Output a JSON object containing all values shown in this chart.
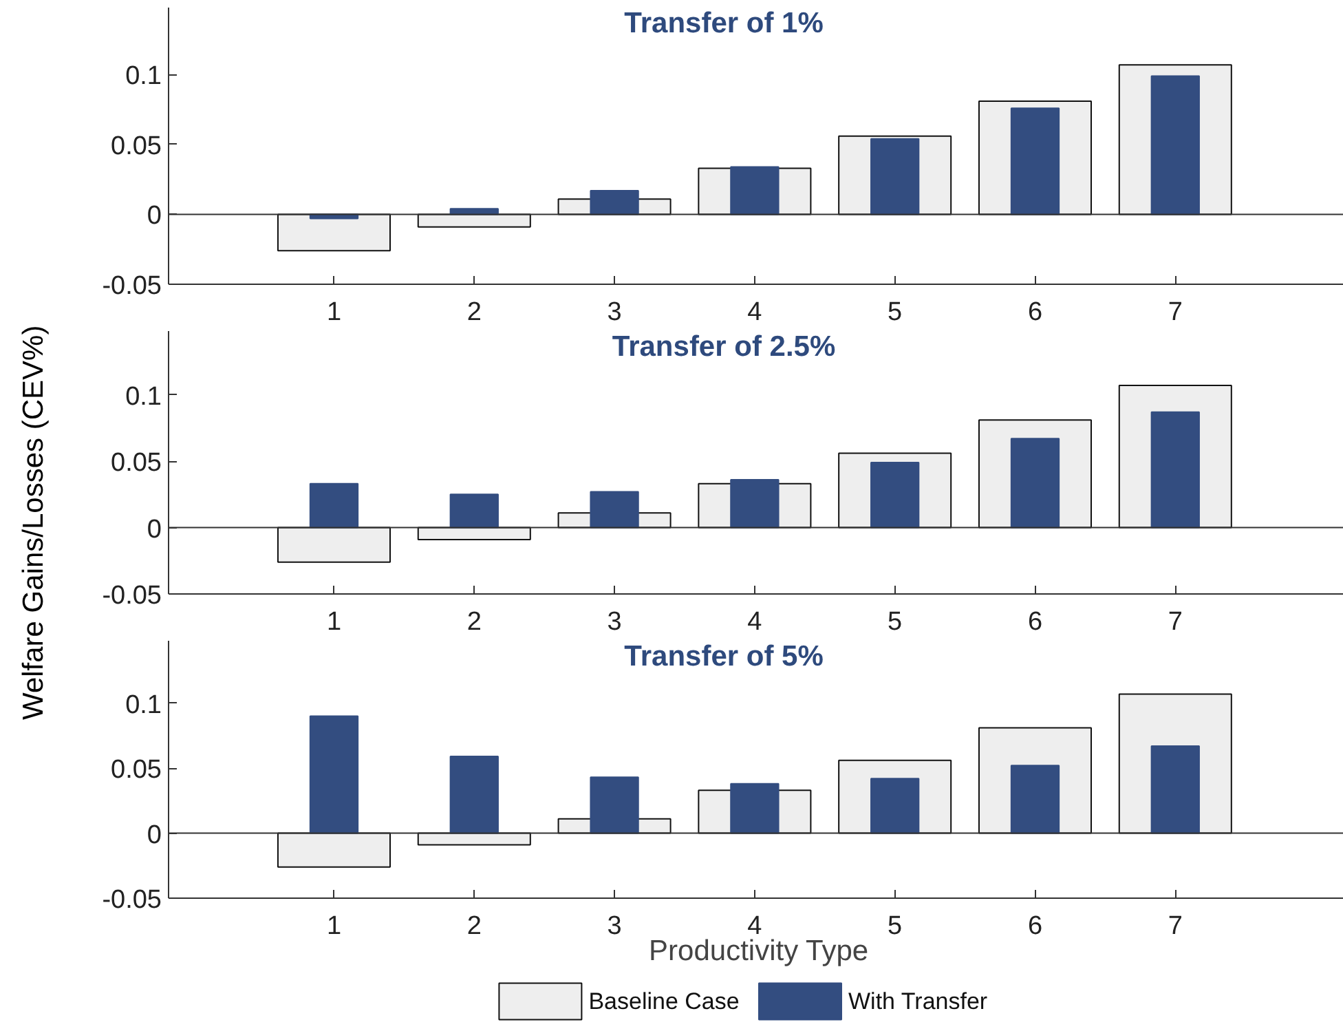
{
  "chart_data": [
    {
      "type": "bar",
      "title": "Transfer of 1%",
      "ref_lines": [
        {
          "axis": "y",
          "value": 0,
          "color": "#333333"
        }
      ],
      "x": [
        1,
        2,
        3,
        4,
        5,
        6,
        7
      ],
      "xlim": [
        -0.18,
        8.24
      ],
      "xticks": [
        1,
        2,
        3,
        4,
        5,
        6,
        7
      ],
      "ylim": [
        -0.05,
        0.148
      ],
      "yticks": [
        -0.05,
        0,
        0.05,
        0.1
      ],
      "grid": false,
      "legend": false,
      "series": [
        {
          "color": "#eeeeee",
          "values": [
            -0.026,
            -0.009,
            0.011,
            0.033,
            0.056,
            0.081,
            0.107
          ]
        },
        {
          "color": "#334d80",
          "values": [
            -0.003,
            0.004,
            0.017,
            0.034,
            0.054,
            0.076,
            0.099
          ]
        }
      ]
    },
    {
      "type": "bar",
      "title": "Transfer of 2.5%",
      "ref_lines": [
        {
          "axis": "y",
          "value": 0,
          "color": "#333333"
        }
      ],
      "ylabel": "Welfare Gains/Losses (CEV%)",
      "x": [
        1,
        2,
        3,
        4,
        5,
        6,
        7
      ],
      "xlim": [
        -0.18,
        8.24
      ],
      "xticks": [
        1,
        2,
        3,
        4,
        5,
        6,
        7
      ],
      "ylim": [
        -0.05,
        0.148
      ],
      "yticks": [
        -0.05,
        0,
        0.05,
        0.1
      ],
      "grid": false,
      "legend": false,
      "series": [
        {
          "color": "#eeeeee",
          "values": [
            -0.026,
            -0.009,
            0.011,
            0.033,
            0.056,
            0.081,
            0.107
          ]
        },
        {
          "color": "#334d80",
          "values": [
            0.033,
            0.025,
            0.027,
            0.036,
            0.049,
            0.067,
            0.087
          ]
        }
      ]
    },
    {
      "type": "bar",
      "title": "Transfer of 5%",
      "ref_lines": [
        {
          "axis": "y",
          "value": 0,
          "color": "#333333"
        }
      ],
      "xlabel": "Productivity Type",
      "x": [
        1,
        2,
        3,
        4,
        5,
        6,
        7
      ],
      "xlim": [
        -0.18,
        8.24
      ],
      "xticks": [
        1,
        2,
        3,
        4,
        5,
        6,
        7
      ],
      "ylim": [
        -0.05,
        0.148
      ],
      "yticks": [
        -0.05,
        0,
        0.05,
        0.1
      ],
      "grid": false,
      "legend": "bottom",
      "series": [
        {
          "name": "Baseline Case",
          "color": "#eeeeee",
          "values": [
            -0.026,
            -0.009,
            0.011,
            0.033,
            0.056,
            0.081,
            0.107
          ]
        },
        {
          "name": "With Transfer",
          "color": "#334d80",
          "values": [
            0.09,
            0.059,
            0.043,
            0.038,
            0.042,
            0.052,
            0.067
          ]
        }
      ]
    }
  ]
}
